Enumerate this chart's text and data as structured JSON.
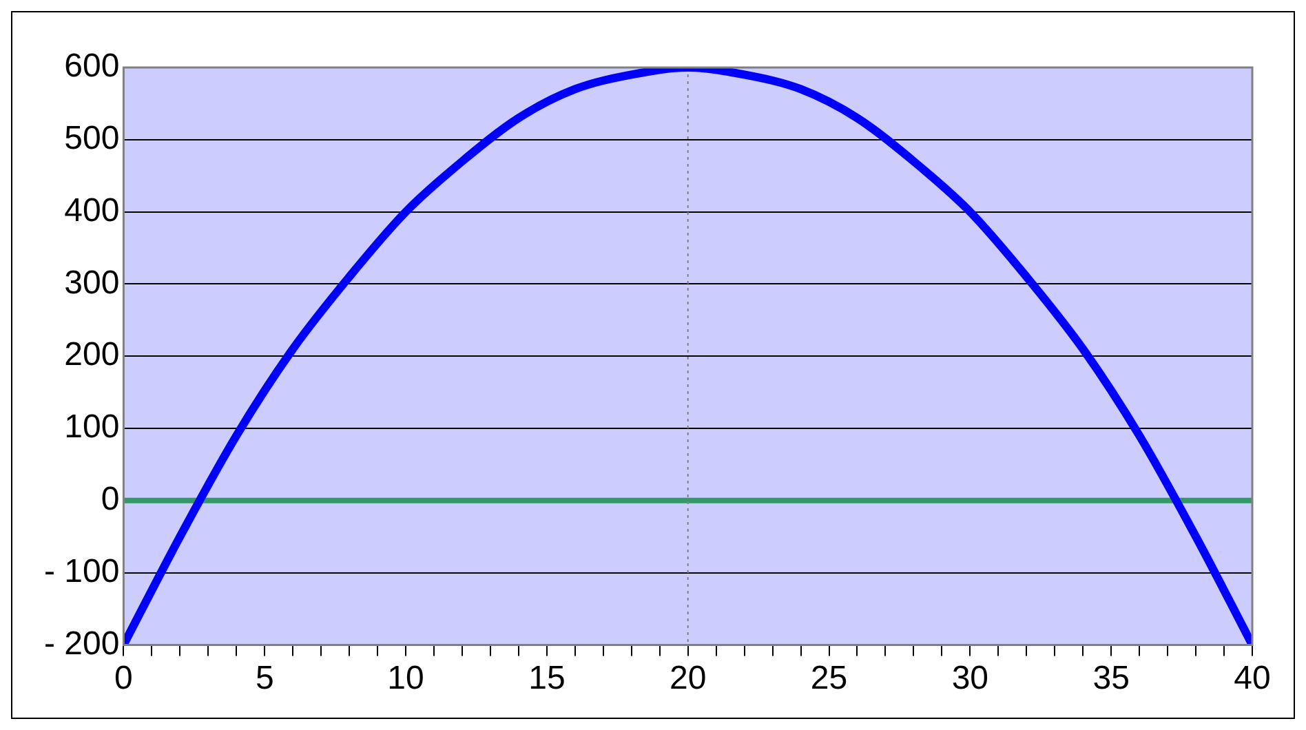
{
  "chart_data": {
    "type": "line",
    "x": [
      0,
      2,
      4,
      6,
      8,
      10,
      12,
      14,
      16,
      18,
      20,
      22,
      24,
      26,
      28,
      30,
      32,
      34,
      36,
      38,
      40
    ],
    "series": [
      {
        "color": "#0000ff",
        "values": [
          -200,
          -50,
          90,
          210,
          310,
          400,
          470,
          530,
          570,
          590,
          600,
          590,
          570,
          530,
          470,
          400,
          310,
          210,
          90,
          -50,
          -200
        ]
      }
    ],
    "xlim": [
      0,
      40
    ],
    "ylim": [
      -200,
      600
    ],
    "xticks": [
      0,
      {
        "value": 1,
        "label": null
      },
      {
        "value": 2,
        "label": null
      },
      {
        "value": 3,
        "label": null
      },
      {
        "value": 4,
        "label": null
      },
      5,
      {
        "value": 6,
        "label": null
      },
      {
        "value": 7,
        "label": null
      },
      {
        "value": 8,
        "label": null
      },
      {
        "value": 9,
        "label": null
      },
      10,
      {
        "value": 11,
        "label": null
      },
      {
        "value": 12,
        "label": null
      },
      {
        "value": 13,
        "label": null
      },
      {
        "value": 14,
        "label": null
      },
      15,
      {
        "value": 16,
        "label": null
      },
      {
        "value": 17,
        "label": null
      },
      {
        "value": 18,
        "label": null
      },
      {
        "value": 19,
        "label": null
      },
      20,
      {
        "value": 21,
        "label": null
      },
      {
        "value": 22,
        "label": null
      },
      {
        "value": 23,
        "label": null
      },
      {
        "value": 24,
        "label": null
      },
      25,
      {
        "value": 26,
        "label": null
      },
      {
        "value": 27,
        "label": null
      },
      {
        "value": 28,
        "label": null
      },
      {
        "value": 29,
        "label": null
      },
      30,
      {
        "value": 31,
        "label": null
      },
      {
        "value": 32,
        "label": null
      },
      {
        "value": 33,
        "label": null
      },
      {
        "value": 34,
        "label": null
      },
      35,
      {
        "value": 36,
        "label": null
      },
      {
        "value": 37,
        "label": null
      },
      {
        "value": 38,
        "label": null
      },
      {
        "value": 39,
        "label": null
      },
      40
    ],
    "yticks": [
      -200,
      -100,
      0,
      100,
      200,
      300,
      400,
      500,
      600
    ],
    "grid": "y",
    "legend": false,
    "marker": "none",
    "line_style": "solid",
    "ref_lines": [
      {
        "axis": "y",
        "value": 0,
        "color": "#339966",
        "line_style": "solid"
      },
      {
        "axis": "x",
        "value": 20,
        "color": "#808080",
        "line_style": "dotted"
      }
    ]
  }
}
